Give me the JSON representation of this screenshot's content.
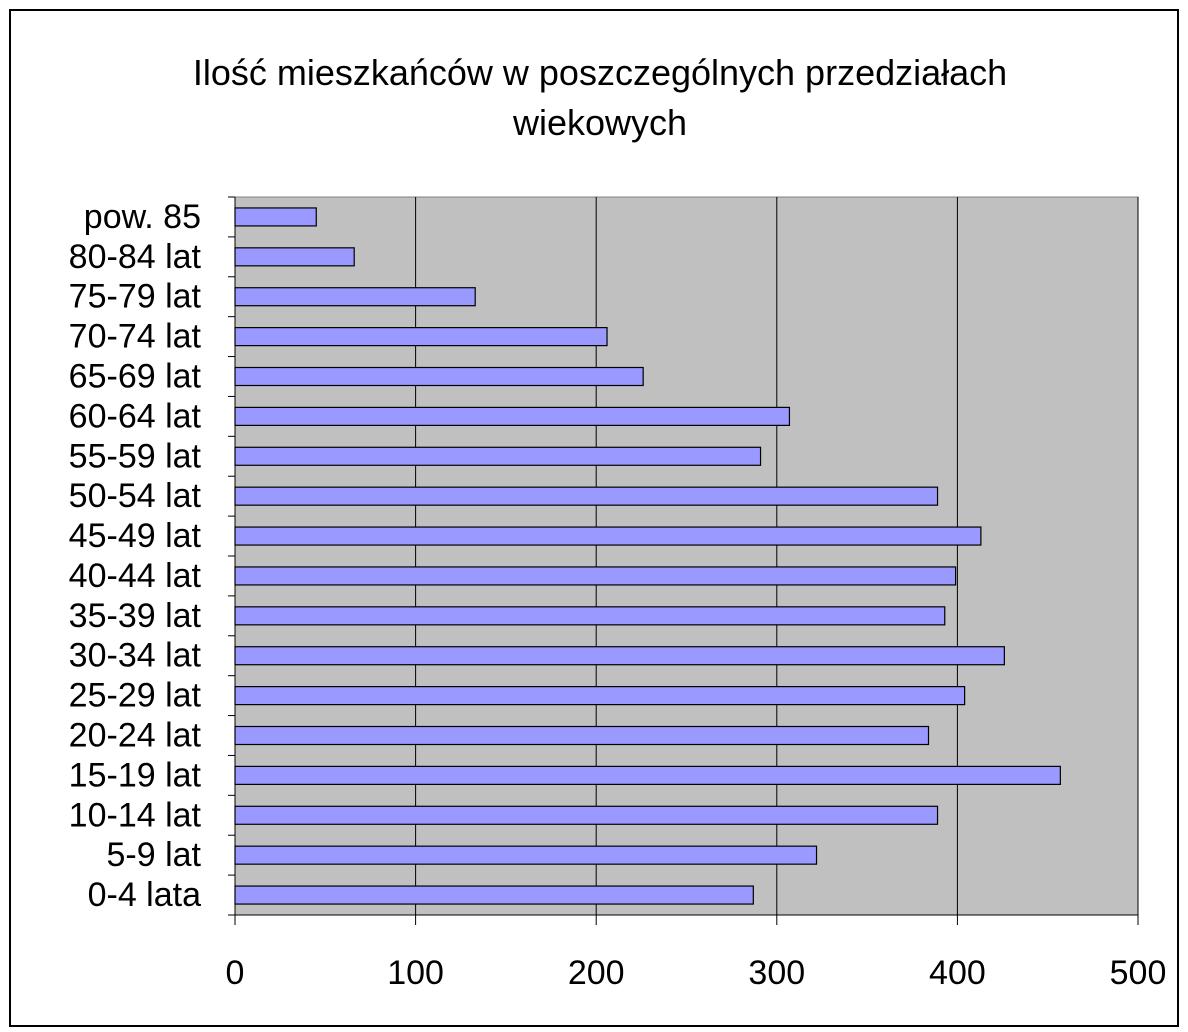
{
  "chart_data": {
    "type": "bar",
    "orientation": "horizontal",
    "title": "Ilość mieszkańców w poszczególnych przedziałach wiekowych",
    "categories": [
      "0-4 lata",
      "5-9 lat",
      "10-14 lat",
      "15-19 lat",
      "20-24 lat",
      "25-29 lat",
      "30-34 lat",
      "35-39 lat",
      "40-44 lat",
      "45-49 lat",
      "50-54 lat",
      "55-59 lat",
      "60-64 lat",
      "65-69 lat",
      "70-74 lat",
      "75-79 lat",
      "80-84 lat",
      "pow. 85"
    ],
    "values": [
      287,
      322,
      389,
      457,
      384,
      404,
      426,
      393,
      399,
      413,
      389,
      291,
      307,
      226,
      206,
      133,
      66,
      45
    ],
    "color": "#9999ff",
    "xlim": [
      0,
      500
    ],
    "xticks": [
      0,
      100,
      200,
      300,
      400,
      500
    ],
    "grid": true
  }
}
